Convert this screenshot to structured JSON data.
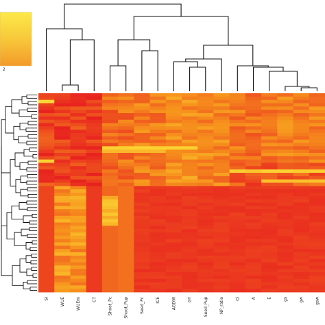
{
  "chart_data": {
    "type": "heatmap",
    "title": "",
    "xlabel": "",
    "ylabel": "",
    "columns": [
      "SI",
      "WUE",
      "WUEm",
      "CT",
      "Shoot_Pc",
      "Shoot_Pup",
      "Seed_Pc",
      "ICE",
      "AGDW",
      "GY",
      "Seed_Pup",
      "NP_ratio",
      "Ci",
      "A",
      "E",
      "gs",
      "gw",
      "gsw"
    ],
    "legend_tick": "2",
    "color_scale": {
      "low": "#e8231f",
      "mid": "#f7941d",
      "high": "#fcf03a"
    },
    "row_count": 60,
    "row_dendrogram": true,
    "column_dendrogram": true
  }
}
